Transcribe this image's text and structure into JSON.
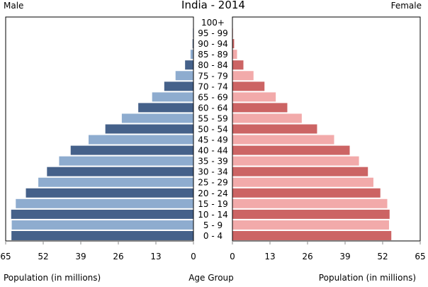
{
  "chart_data": {
    "type": "bar",
    "title": "India - 2014",
    "left_label": "Male",
    "right_label": "Female",
    "xlabel_left": "Population (in millions)",
    "xlabel_center": "Age Group",
    "xlabel_right": "Population (in millions)",
    "xlim": [
      0,
      65
    ],
    "ticks": [
      "65",
      "52",
      "39",
      "26",
      "13",
      "0"
    ],
    "ticks_right": [
      "0",
      "13",
      "26",
      "39",
      "52",
      "65"
    ],
    "tick_values": [
      0,
      13,
      26,
      39,
      52,
      65
    ],
    "categories": [
      "100+",
      "95 - 99",
      "90 - 94",
      "85 - 89",
      "80 - 84",
      "75 - 79",
      "70 - 74",
      "65 - 69",
      "60 - 64",
      "55 - 59",
      "50 - 54",
      "45 - 49",
      "40 - 44",
      "35 - 39",
      "30 - 34",
      "25 - 29",
      "20 - 24",
      "15 - 19",
      "10 - 14",
      "5 - 9",
      "0 - 4"
    ],
    "series": [
      {
        "name": "Male",
        "values": [
          0.1,
          0.2,
          0.3,
          1.0,
          2.9,
          6.2,
          10.1,
          14.3,
          19.1,
          24.8,
          30.5,
          36.3,
          42.5,
          46.5,
          50.7,
          53.7,
          58.0,
          61.5,
          63.1,
          62.9,
          63.0
        ]
      },
      {
        "name": "Female",
        "values": [
          0.1,
          0.2,
          0.6,
          1.6,
          3.8,
          7.3,
          11.1,
          15.0,
          19.0,
          24.0,
          29.3,
          35.2,
          40.6,
          43.8,
          46.9,
          48.8,
          51.2,
          53.6,
          54.4,
          54.2,
          55.0
        ]
      }
    ],
    "colors": {
      "male_dark": "#45618a",
      "male_light": "#8eaccf",
      "female_dark": "#cc6464",
      "female_light": "#f2aaaa",
      "axis": "#000000",
      "tick": "#888888"
    }
  }
}
